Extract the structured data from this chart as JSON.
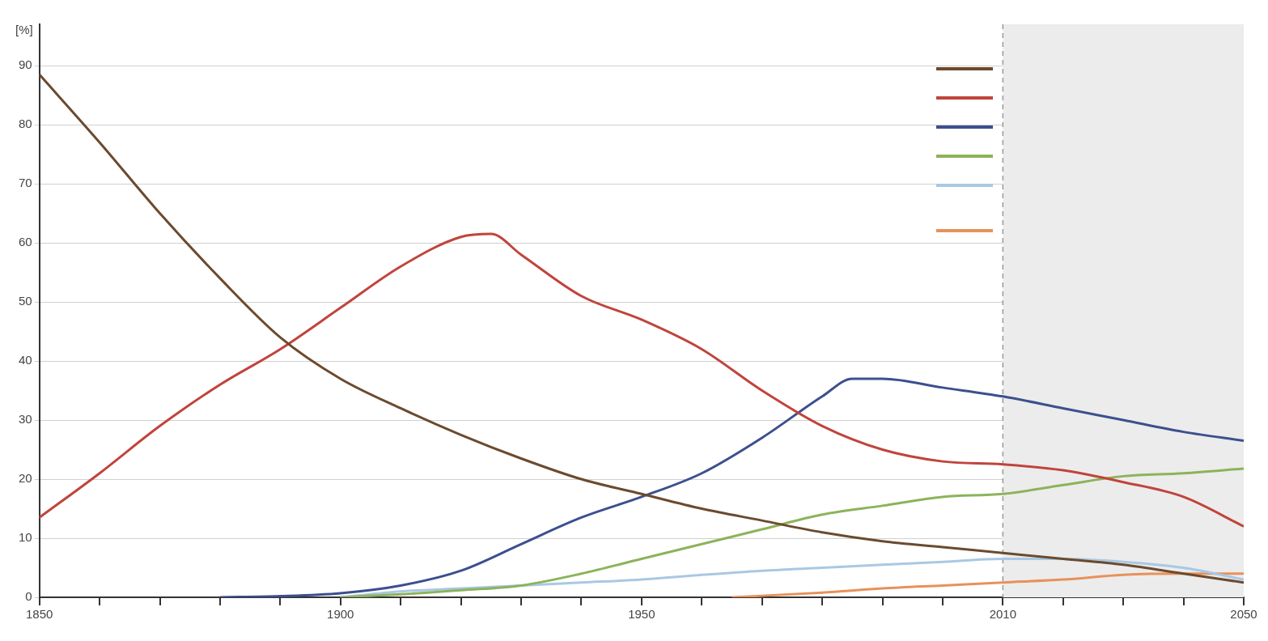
{
  "chart_data": {
    "type": "line",
    "ylabel": "[%]",
    "xlim": [
      1850,
      2050
    ],
    "ylim": [
      0,
      97
    ],
    "xticks": [
      1850,
      {
        "value": 1860,
        "label": null
      },
      {
        "value": 1870,
        "label": null
      },
      {
        "value": 1880,
        "label": null
      },
      {
        "value": 1890,
        "label": null
      },
      1900,
      {
        "value": 1910,
        "label": null
      },
      {
        "value": 1920,
        "label": null
      },
      {
        "value": 1930,
        "label": null
      },
      {
        "value": 1940,
        "label": null
      },
      1950,
      {
        "value": 1960,
        "label": null
      },
      {
        "value": 1970,
        "label": null
      },
      {
        "value": 1980,
        "label": null
      },
      {
        "value": 1990,
        "label": null
      },
      {
        "value": 2000,
        "label": null
      },
      2010,
      {
        "value": 2020,
        "label": null
      },
      {
        "value": 2030,
        "label": null
      },
      {
        "value": 2040,
        "label": null
      },
      2050
    ],
    "yticks": [
      0,
      10,
      20,
      30,
      40,
      50,
      60,
      70,
      80,
      90
    ],
    "grid": "y",
    "marker": "none",
    "line_style": "solid",
    "bands": [
      {
        "axis": "x",
        "from": 2010,
        "to": 2050,
        "color": "#ececec"
      }
    ],
    "ref_lines": [
      {
        "axis": "x",
        "value": 2010,
        "color": "#9a9a9a",
        "line_style": "dashed"
      }
    ],
    "series": [
      {
        "color": "#6b4a2e",
        "x": [
          1850,
          1860,
          1870,
          1880,
          1890,
          1900,
          1910,
          1920,
          1930,
          1940,
          1950,
          1960,
          1970,
          1980,
          1990,
          2000,
          2010,
          2020,
          2030,
          2040,
          2050
        ],
        "values": [
          88.5,
          77,
          65,
          54,
          44,
          37,
          32,
          27.5,
          23.5,
          20,
          17.5,
          15,
          13,
          11,
          9.5,
          8.5,
          7.5,
          6.5,
          5.5,
          4,
          2.5
        ]
      },
      {
        "color": "#c0443c",
        "x": [
          1850,
          1860,
          1870,
          1880,
          1890,
          1900,
          1910,
          1920,
          1925,
          1930,
          1940,
          1950,
          1960,
          1970,
          1980,
          1990,
          2000,
          2010,
          2020,
          2030,
          2040,
          2050
        ],
        "values": [
          13.5,
          21,
          29,
          36,
          42,
          49,
          56,
          61,
          61.5,
          58,
          51,
          47,
          42,
          35,
          29,
          25,
          23,
          22.5,
          21.5,
          19.5,
          17,
          12
        ]
      },
      {
        "color": "#3c4f8f",
        "x": [
          1880,
          1890,
          1900,
          1910,
          1920,
          1930,
          1940,
          1950,
          1960,
          1970,
          1980,
          1985,
          1990,
          2000,
          2010,
          2020,
          2030,
          2040,
          2050
        ],
        "values": [
          0,
          0.2,
          0.7,
          2,
          4.5,
          9,
          13.5,
          17,
          21,
          27,
          34,
          37,
          37,
          35.5,
          34,
          32,
          30,
          28,
          26.5
        ]
      },
      {
        "color": "#8cb35a",
        "x": [
          1900,
          1910,
          1920,
          1930,
          1940,
          1950,
          1960,
          1970,
          1980,
          1990,
          2000,
          2010,
          2020,
          2030,
          2040,
          2050
        ],
        "values": [
          0,
          0.5,
          1.2,
          2,
          4,
          6.5,
          9,
          11.5,
          14,
          15.5,
          17,
          17.5,
          19,
          20.5,
          21,
          21.8
        ]
      },
      {
        "color": "#a9c8e4",
        "x": [
          1900,
          1910,
          1920,
          1930,
          1940,
          1950,
          1960,
          1970,
          1980,
          1990,
          2000,
          2010,
          2020,
          2030,
          2040,
          2050
        ],
        "values": [
          0,
          1,
          1.5,
          2,
          2.5,
          3,
          3.8,
          4.5,
          5,
          5.5,
          6,
          6.5,
          6.5,
          6,
          5,
          3
        ]
      },
      {
        "color": "#e8915a",
        "x": [
          1965,
          1980,
          1990,
          2000,
          2010,
          2020,
          2030,
          2040,
          2050
        ],
        "values": [
          0,
          0.8,
          1.5,
          2,
          2.5,
          3,
          3.8,
          4,
          4
        ]
      }
    ]
  }
}
